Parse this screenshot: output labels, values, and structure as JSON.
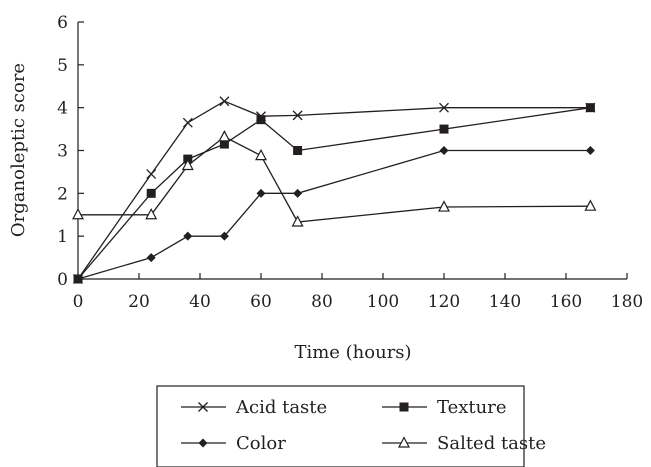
{
  "chart_data": {
    "type": "line",
    "xlabel": "Time (hours)",
    "ylabel": "Organoleptic score",
    "xlim": [
      0,
      180
    ],
    "ylim": [
      0,
      6
    ],
    "x_ticks": [
      0,
      20,
      40,
      60,
      80,
      100,
      120,
      140,
      160,
      180
    ],
    "y_ticks": [
      0,
      1,
      2,
      3,
      4,
      5,
      6
    ],
    "grid": false,
    "legend_position": "bottom",
    "series": [
      {
        "name": "Acid taste",
        "marker": "x",
        "x": [
          0,
          24,
          36,
          48,
          60,
          72,
          120,
          168
        ],
        "y": [
          0,
          2.45,
          3.65,
          4.15,
          3.8,
          3.82,
          4.0,
          4.0
        ]
      },
      {
        "name": "Texture",
        "marker": "square",
        "x": [
          0,
          24,
          36,
          48,
          60,
          72,
          120,
          168
        ],
        "y": [
          0,
          2.0,
          2.8,
          3.15,
          3.72,
          3.0,
          3.5,
          4.0
        ]
      },
      {
        "name": "Color",
        "marker": "diamond",
        "x": [
          0,
          24,
          36,
          48,
          60,
          72,
          120,
          168
        ],
        "y": [
          0,
          0.5,
          1.0,
          1.0,
          2.0,
          2.0,
          3.0,
          3.0
        ]
      },
      {
        "name": "Salted taste",
        "marker": "triangle",
        "x": [
          0,
          24,
          36,
          48,
          60,
          72,
          120,
          168
        ],
        "y": [
          1.5,
          1.5,
          2.65,
          3.32,
          2.88,
          1.33,
          1.68,
          1.7
        ]
      }
    ]
  }
}
